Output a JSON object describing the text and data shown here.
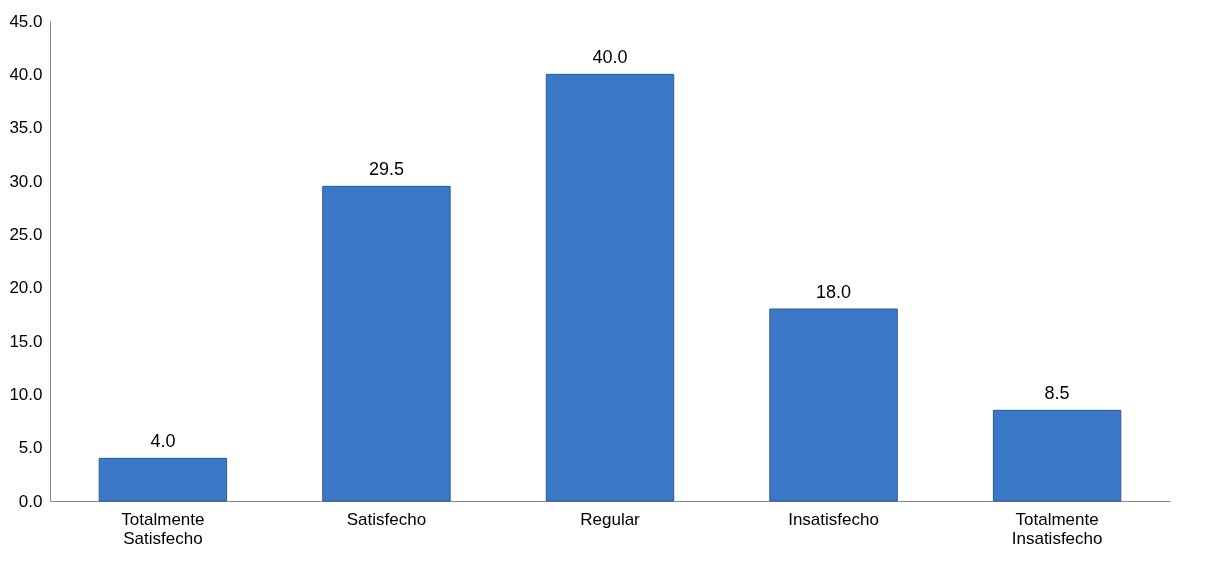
{
  "chart_data": {
    "type": "bar",
    "categories": [
      "Totalmente Satisfecho",
      "Satisfecho",
      "Regular",
      "Insatisfecho",
      "Totalmente Insatisfecho"
    ],
    "values": [
      4.0,
      29.5,
      40.0,
      18.0,
      8.5
    ],
    "value_labels": [
      "4.0",
      "29.5",
      "40.0",
      "18.0",
      "8.5"
    ],
    "color": "#3b78c8",
    "ylim": [
      0,
      45
    ],
    "yticks": [
      {
        "value": 0,
        "label": "0.0"
      },
      {
        "value": 5,
        "label": "5.0"
      },
      {
        "value": 10,
        "label": "10.0"
      },
      {
        "value": 15,
        "label": "15.0"
      },
      {
        "value": 20,
        "label": "20.0"
      },
      {
        "value": 25,
        "label": "25.0"
      },
      {
        "value": 30,
        "label": "30.0"
      },
      {
        "value": 35,
        "label": "35.0"
      },
      {
        "value": 40,
        "label": "40.0"
      },
      {
        "value": 45,
        "label": "45.0"
      }
    ],
    "grid": false
  }
}
